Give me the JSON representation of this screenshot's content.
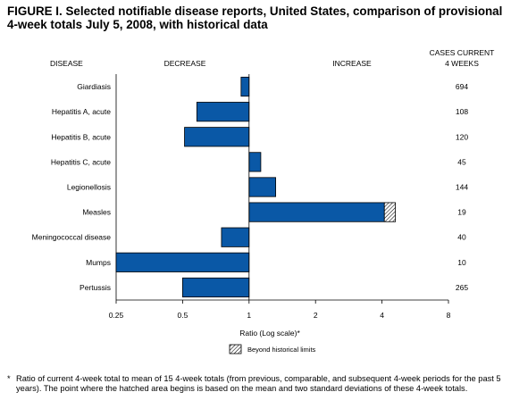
{
  "figure": {
    "title": "FIGURE I. Selected notifiable disease reports, United States, comparison of provisional 4-week totals July 5, 2008, with historical data",
    "footnote_mark": "*",
    "footnote": "Ratio of current 4-week total to mean of 15 4-week totals (from previous, comparable, and subsequent 4-week periods for the past 5 years). The point where the hatched area begins is based on the mean and two standard deviations of these 4-week totals."
  },
  "chart_data": {
    "type": "bar",
    "orientation": "horizontal",
    "scale": "log",
    "column_headers": {
      "disease": "DISEASE",
      "decrease": "DECREASE",
      "increase": "INCREASE",
      "cases": [
        "CASES CURRENT",
        "4 WEEKS"
      ]
    },
    "categories": [
      "Giardiasis",
      "Hepatitis A, acute",
      "Hepatitis B, acute",
      "Hepatitis C, acute",
      "Legionellosis",
      "Measles",
      "Meningococcal disease",
      "Mumps",
      "Pertussis"
    ],
    "values": [
      0.92,
      0.58,
      0.51,
      1.13,
      1.32,
      4.1,
      0.75,
      0.25,
      0.5
    ],
    "beyond_historical_limits": [
      null,
      null,
      null,
      null,
      null,
      4.6,
      null,
      null,
      null
    ],
    "cases_current_4_weeks": [
      "694",
      "108",
      "120",
      "45",
      "144",
      "19",
      "40",
      "10",
      "265"
    ],
    "x_ticks": [
      0.25,
      0.5,
      1,
      2,
      4,
      8
    ],
    "x_tick_labels": [
      "0.25",
      "0.5",
      "1",
      "2",
      "4",
      "8"
    ],
    "xlim": [
      0.25,
      8
    ],
    "baseline": 1,
    "xlabel": "Ratio (Log scale)*",
    "legend": {
      "label": "Beyond historical limits",
      "placement": "bottom-center"
    },
    "colors": {
      "bar": "#0a58a6",
      "border": "#000000"
    }
  }
}
